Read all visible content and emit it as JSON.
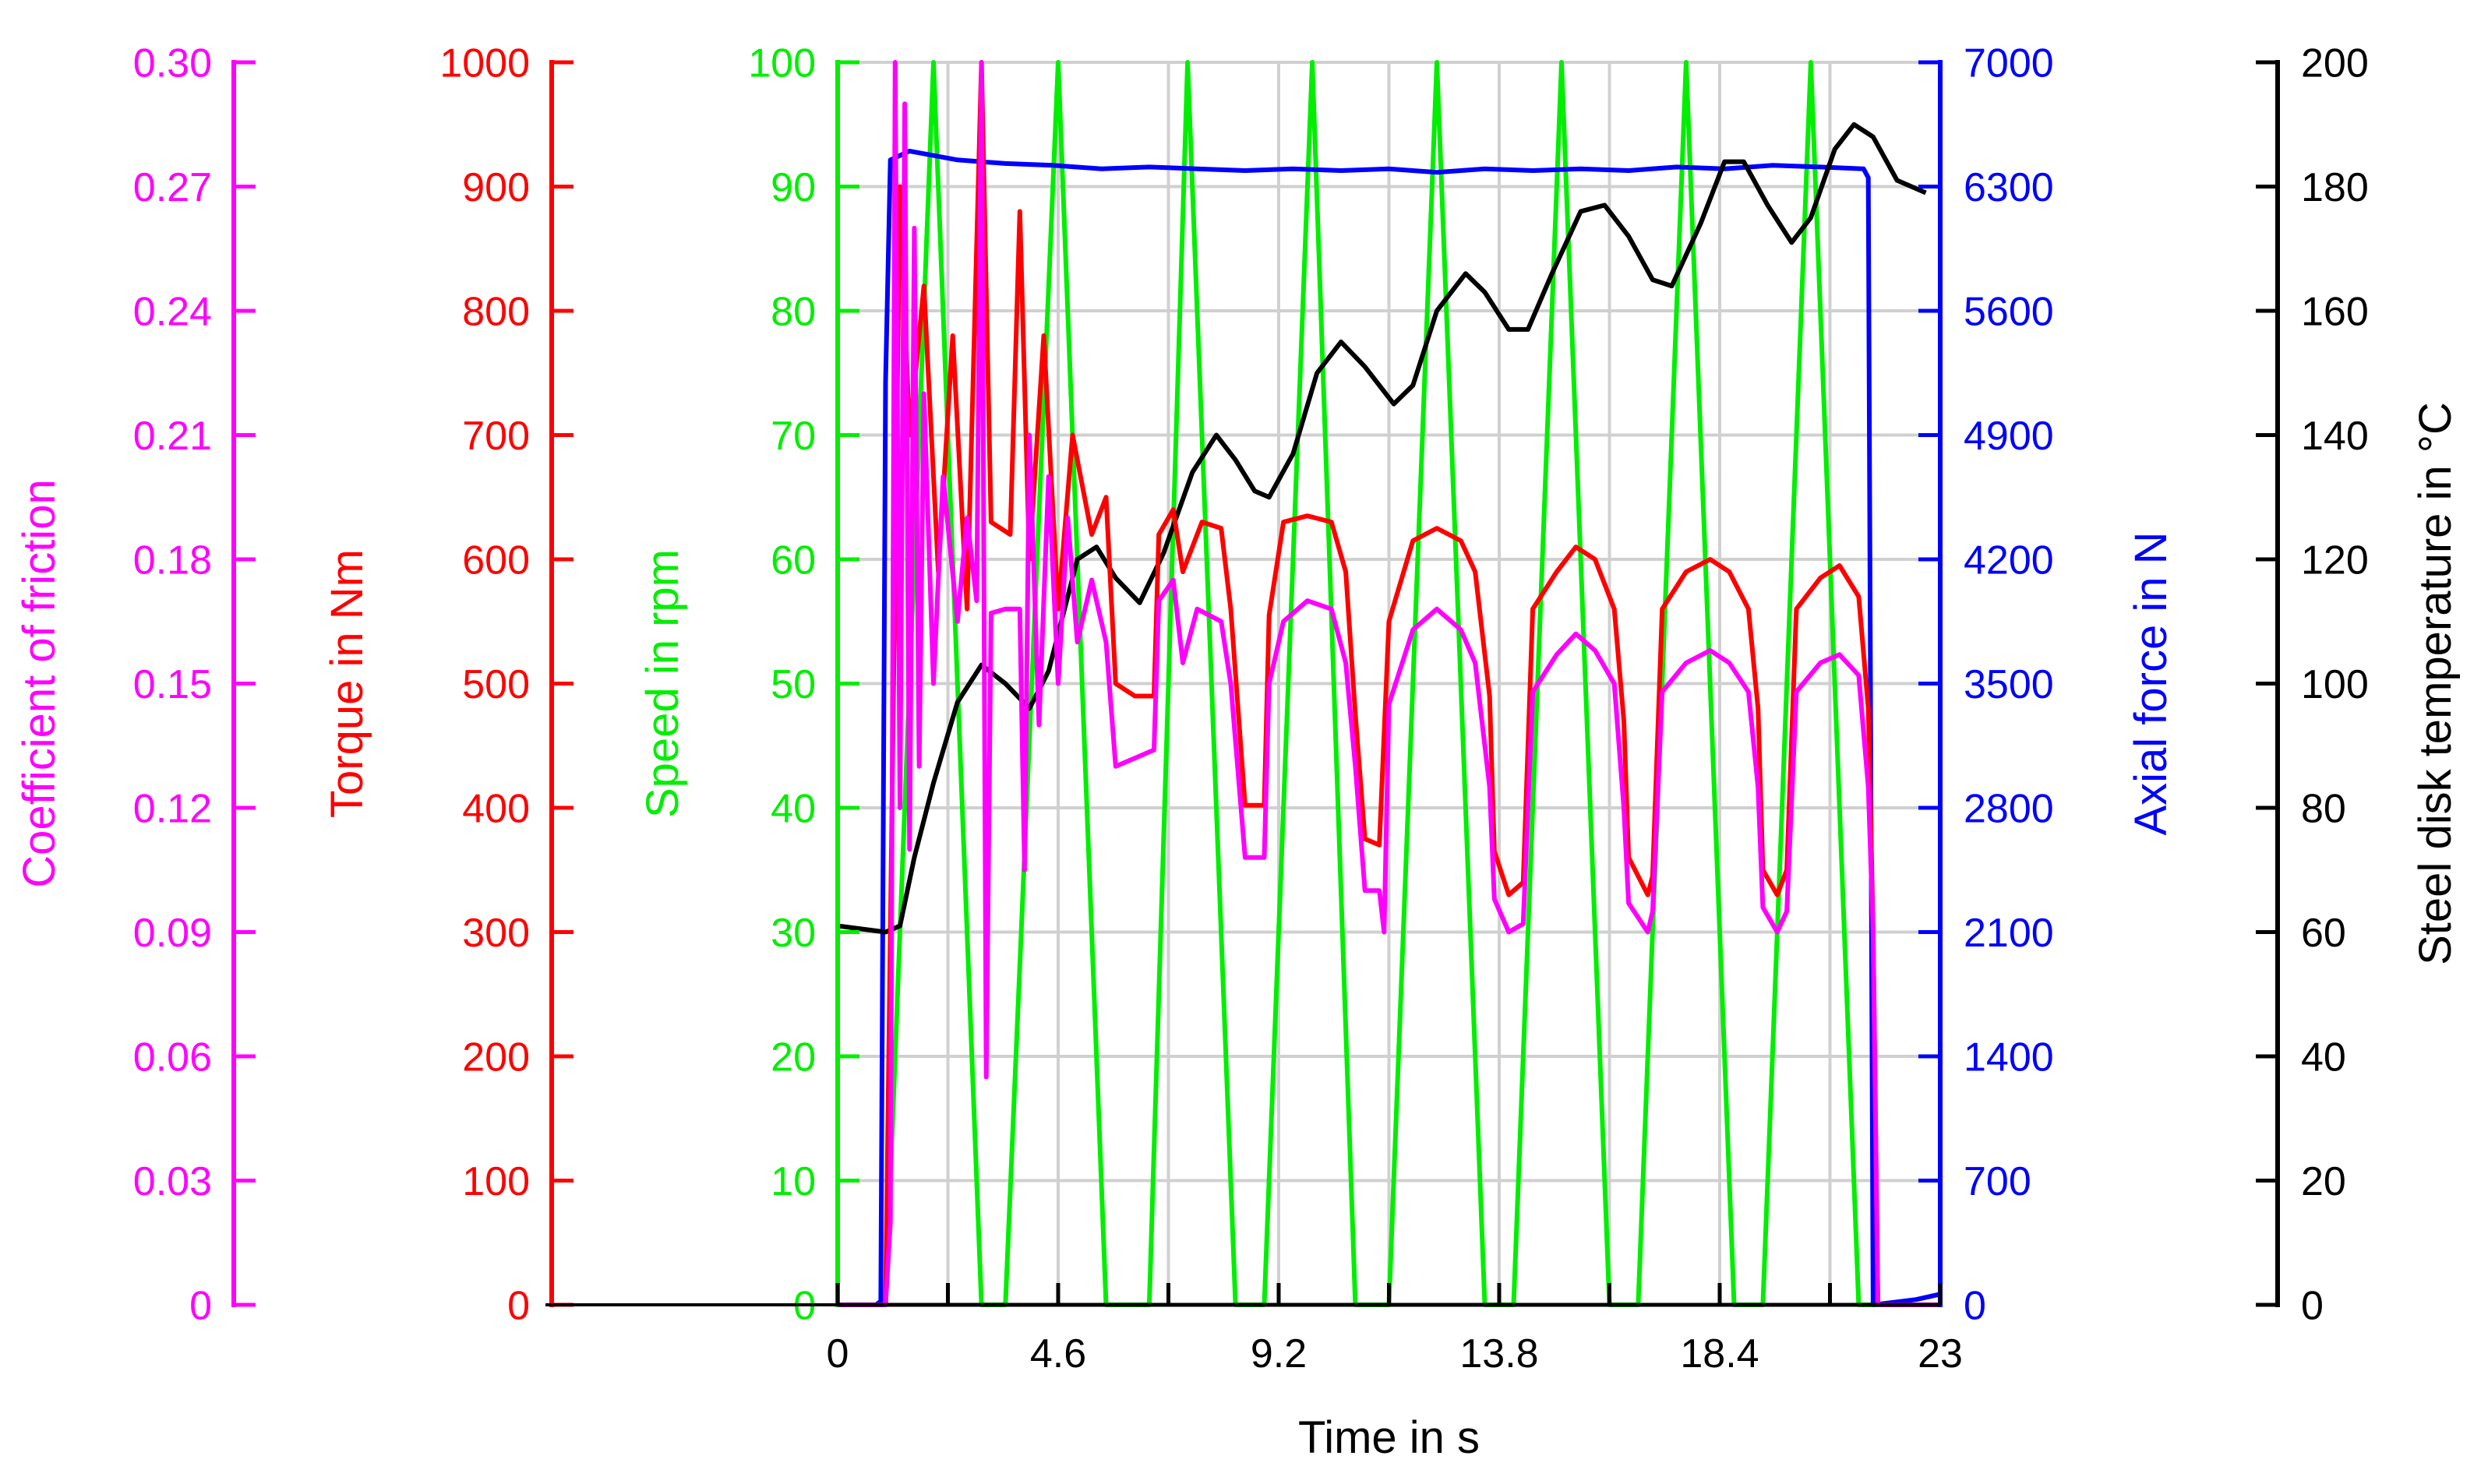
{
  "chart_data": {
    "type": "line",
    "x_axis": {
      "label": "Time in s",
      "min": 0,
      "max": 23,
      "ticks": [
        "0",
        "4.6",
        "9.2",
        "13.8",
        "18.4",
        "23"
      ],
      "minor_ticks": [
        2.3,
        6.9,
        11.5,
        16.1,
        20.7
      ]
    },
    "axes": [
      {
        "id": "friction",
        "label": "Coefficient of friction",
        "color": "#ff00ff",
        "min": 0,
        "max": 0.3,
        "ticks": [
          "0",
          "0.03",
          "0.06",
          "0.09",
          "0.12",
          "0.15",
          "0.18",
          "0.21",
          "0.24",
          "0.27",
          "0.30"
        ]
      },
      {
        "id": "torque",
        "label": "Torque in Nm",
        "color": "#ff0000",
        "min": 0,
        "max": 1000,
        "ticks": [
          "0",
          "100",
          "200",
          "300",
          "400",
          "500",
          "600",
          "700",
          "800",
          "900",
          "1000"
        ]
      },
      {
        "id": "speed",
        "label": "Speed in rpm",
        "color": "#00ee00",
        "min": 0,
        "max": 100,
        "ticks": [
          "0",
          "10",
          "20",
          "30",
          "40",
          "50",
          "60",
          "70",
          "80",
          "90",
          "100"
        ]
      },
      {
        "id": "axial",
        "label": "Axial force in N",
        "color": "#0000ff",
        "min": 0,
        "max": 7000,
        "ticks": [
          "0",
          "700",
          "1400",
          "2100",
          "2800",
          "3500",
          "4200",
          "4900",
          "5600",
          "6300",
          "7000"
        ]
      },
      {
        "id": "temp",
        "label": "Steel disk temperature in °C",
        "color": "#000000",
        "min": 0,
        "max": 200,
        "ticks": [
          "0",
          "20",
          "40",
          "60",
          "80",
          "100",
          "120",
          "140",
          "160",
          "180",
          "200"
        ]
      }
    ],
    "series": [
      {
        "name": "Speed",
        "axis": "speed",
        "color": "#00ee00",
        "points": [
          [
            0,
            0
          ],
          [
            1.0,
            0
          ],
          [
            2.0,
            100
          ],
          [
            3.0,
            0
          ],
          [
            3.5,
            0
          ],
          [
            4.6,
            100
          ],
          [
            5.6,
            0
          ],
          [
            6.5,
            0
          ],
          [
            7.3,
            100
          ],
          [
            8.3,
            0
          ],
          [
            8.9,
            0
          ],
          [
            9.9,
            100
          ],
          [
            10.8,
            0
          ],
          [
            11.5,
            0
          ],
          [
            12.5,
            100
          ],
          [
            13.5,
            0
          ],
          [
            14.1,
            0
          ],
          [
            15.1,
            100
          ],
          [
            16.1,
            0
          ],
          [
            16.7,
            0
          ],
          [
            17.7,
            100
          ],
          [
            18.7,
            0
          ],
          [
            19.3,
            0
          ],
          [
            20.3,
            100
          ],
          [
            21.3,
            0
          ],
          [
            23,
            0
          ]
        ]
      },
      {
        "name": "Axial force",
        "axis": "axial",
        "color": "#0000ff",
        "points": [
          [
            0,
            0
          ],
          [
            0.8,
            0
          ],
          [
            0.9,
            20
          ],
          [
            1.0,
            5200
          ],
          [
            1.1,
            6450
          ],
          [
            1.5,
            6500
          ],
          [
            2.5,
            6450
          ],
          [
            3.5,
            6430
          ],
          [
            4.5,
            6420
          ],
          [
            5.5,
            6400
          ],
          [
            6.5,
            6410
          ],
          [
            7.5,
            6400
          ],
          [
            8.5,
            6390
          ],
          [
            9.5,
            6400
          ],
          [
            10.5,
            6390
          ],
          [
            11.5,
            6400
          ],
          [
            12.5,
            6380
          ],
          [
            13.5,
            6400
          ],
          [
            14.5,
            6390
          ],
          [
            15.5,
            6400
          ],
          [
            16.5,
            6390
          ],
          [
            17.5,
            6410
          ],
          [
            18.5,
            6400
          ],
          [
            19.5,
            6420
          ],
          [
            20.5,
            6410
          ],
          [
            21.4,
            6400
          ],
          [
            21.5,
            6350
          ],
          [
            21.6,
            0
          ],
          [
            22.5,
            30
          ],
          [
            23,
            60
          ]
        ]
      },
      {
        "name": "Steel disk temperature",
        "axis": "temp",
        "color": "#000000",
        "points": [
          [
            0,
            61
          ],
          [
            1.0,
            60
          ],
          [
            1.3,
            61
          ],
          [
            1.6,
            72
          ],
          [
            2.0,
            84
          ],
          [
            2.5,
            97
          ],
          [
            3.0,
            103
          ],
          [
            3.5,
            100
          ],
          [
            4.0,
            96
          ],
          [
            4.4,
            102
          ],
          [
            5.0,
            120
          ],
          [
            5.4,
            122
          ],
          [
            5.8,
            117
          ],
          [
            6.3,
            113
          ],
          [
            6.8,
            121
          ],
          [
            7.4,
            134
          ],
          [
            7.9,
            140
          ],
          [
            8.3,
            136
          ],
          [
            8.7,
            131
          ],
          [
            9.0,
            130
          ],
          [
            9.5,
            137
          ],
          [
            10.0,
            150
          ],
          [
            10.5,
            155
          ],
          [
            11.0,
            151
          ],
          [
            11.6,
            145
          ],
          [
            12.0,
            148
          ],
          [
            12.5,
            160
          ],
          [
            13.1,
            166
          ],
          [
            13.5,
            163
          ],
          [
            14.0,
            157
          ],
          [
            14.4,
            157
          ],
          [
            14.9,
            166
          ],
          [
            15.5,
            176
          ],
          [
            16.0,
            177
          ],
          [
            16.5,
            172
          ],
          [
            17.0,
            165
          ],
          [
            17.4,
            164
          ],
          [
            18.0,
            174
          ],
          [
            18.5,
            184
          ],
          [
            18.9,
            184
          ],
          [
            19.4,
            177
          ],
          [
            19.9,
            171
          ],
          [
            20.3,
            175
          ],
          [
            20.8,
            186
          ],
          [
            21.2,
            190
          ],
          [
            21.6,
            188
          ],
          [
            22.1,
            181
          ],
          [
            22.7,
            179
          ]
        ]
      },
      {
        "name": "Torque",
        "axis": "torque",
        "color": "#ff0000",
        "points": [
          [
            0,
            0
          ],
          [
            1.0,
            0
          ],
          [
            1.3,
            900
          ],
          [
            1.5,
            700
          ],
          [
            1.8,
            820
          ],
          [
            2.1,
            590
          ],
          [
            2.4,
            780
          ],
          [
            2.7,
            560
          ],
          [
            3.0,
            1000
          ],
          [
            3.2,
            630
          ],
          [
            3.6,
            620
          ],
          [
            3.8,
            880
          ],
          [
            4.0,
            600
          ],
          [
            4.3,
            780
          ],
          [
            4.6,
            560
          ],
          [
            4.9,
            700
          ],
          [
            5.3,
            620
          ],
          [
            5.6,
            650
          ],
          [
            5.8,
            500
          ],
          [
            6.2,
            490
          ],
          [
            6.6,
            490
          ],
          [
            6.7,
            620
          ],
          [
            7.0,
            640
          ],
          [
            7.2,
            590
          ],
          [
            7.6,
            630
          ],
          [
            8.0,
            625
          ],
          [
            8.2,
            560
          ],
          [
            8.5,
            402
          ],
          [
            8.9,
            402
          ],
          [
            9.0,
            555
          ],
          [
            9.3,
            630
          ],
          [
            9.8,
            635
          ],
          [
            10.3,
            630
          ],
          [
            10.6,
            590
          ],
          [
            10.8,
            475
          ],
          [
            11.0,
            375
          ],
          [
            11.3,
            370
          ],
          [
            11.5,
            550
          ],
          [
            12.0,
            615
          ],
          [
            12.5,
            625
          ],
          [
            13.0,
            615
          ],
          [
            13.3,
            590
          ],
          [
            13.6,
            490
          ],
          [
            13.7,
            365
          ],
          [
            14.0,
            330
          ],
          [
            14.3,
            340
          ],
          [
            14.5,
            560
          ],
          [
            15.0,
            590
          ],
          [
            15.4,
            610
          ],
          [
            15.8,
            600
          ],
          [
            16.2,
            560
          ],
          [
            16.4,
            470
          ],
          [
            16.5,
            360
          ],
          [
            16.9,
            330
          ],
          [
            17.0,
            345
          ],
          [
            17.2,
            560
          ],
          [
            17.7,
            590
          ],
          [
            18.2,
            600
          ],
          [
            18.6,
            590
          ],
          [
            19.0,
            560
          ],
          [
            19.2,
            480
          ],
          [
            19.3,
            350
          ],
          [
            19.6,
            330
          ],
          [
            19.8,
            350
          ],
          [
            20.0,
            560
          ],
          [
            20.5,
            585
          ],
          [
            20.9,
            595
          ],
          [
            21.3,
            570
          ],
          [
            21.5,
            480
          ],
          [
            21.6,
            300
          ],
          [
            21.7,
            0
          ],
          [
            23,
            0
          ]
        ]
      },
      {
        "name": "Coefficient of friction",
        "axis": "friction",
        "color": "#ff00ff",
        "points": [
          [
            0,
            0
          ],
          [
            1.0,
            0
          ],
          [
            1.1,
            0.02
          ],
          [
            1.2,
            0.3
          ],
          [
            1.3,
            0.12
          ],
          [
            1.4,
            0.29
          ],
          [
            1.5,
            0.11
          ],
          [
            1.6,
            0.26
          ],
          [
            1.7,
            0.13
          ],
          [
            1.8,
            0.22
          ],
          [
            2.0,
            0.15
          ],
          [
            2.2,
            0.2
          ],
          [
            2.5,
            0.165
          ],
          [
            2.7,
            0.19
          ],
          [
            2.9,
            0.17
          ],
          [
            3.0,
            0.3
          ],
          [
            3.1,
            0.055
          ],
          [
            3.2,
            0.167
          ],
          [
            3.5,
            0.168
          ],
          [
            3.8,
            0.168
          ],
          [
            3.9,
            0.105
          ],
          [
            4.0,
            0.21
          ],
          [
            4.2,
            0.14
          ],
          [
            4.4,
            0.2
          ],
          [
            4.6,
            0.15
          ],
          [
            4.8,
            0.19
          ],
          [
            5.0,
            0.16
          ],
          [
            5.3,
            0.175
          ],
          [
            5.6,
            0.16
          ],
          [
            5.8,
            0.13
          ],
          [
            6.2,
            0.132
          ],
          [
            6.6,
            0.134
          ],
          [
            6.7,
            0.17
          ],
          [
            7.0,
            0.175
          ],
          [
            7.2,
            0.155
          ],
          [
            7.5,
            0.168
          ],
          [
            8.0,
            0.165
          ],
          [
            8.2,
            0.15
          ],
          [
            8.5,
            0.108
          ],
          [
            8.9,
            0.108
          ],
          [
            9.0,
            0.15
          ],
          [
            9.3,
            0.165
          ],
          [
            9.8,
            0.17
          ],
          [
            10.3,
            0.168
          ],
          [
            10.6,
            0.155
          ],
          [
            10.8,
            0.13
          ],
          [
            11.0,
            0.1
          ],
          [
            11.3,
            0.1
          ],
          [
            11.4,
            0.09
          ],
          [
            11.5,
            0.145
          ],
          [
            12.0,
            0.163
          ],
          [
            12.5,
            0.168
          ],
          [
            13.0,
            0.163
          ],
          [
            13.3,
            0.155
          ],
          [
            13.6,
            0.125
          ],
          [
            13.7,
            0.098
          ],
          [
            14.0,
            0.09
          ],
          [
            14.3,
            0.092
          ],
          [
            14.5,
            0.148
          ],
          [
            15.0,
            0.157
          ],
          [
            15.4,
            0.162
          ],
          [
            15.8,
            0.158
          ],
          [
            16.2,
            0.15
          ],
          [
            16.4,
            0.12
          ],
          [
            16.5,
            0.097
          ],
          [
            16.9,
            0.09
          ],
          [
            17.0,
            0.095
          ],
          [
            17.2,
            0.148
          ],
          [
            17.7,
            0.155
          ],
          [
            18.2,
            0.158
          ],
          [
            18.6,
            0.155
          ],
          [
            19.0,
            0.148
          ],
          [
            19.2,
            0.125
          ],
          [
            19.3,
            0.096
          ],
          [
            19.6,
            0.09
          ],
          [
            19.8,
            0.095
          ],
          [
            20.0,
            0.148
          ],
          [
            20.5,
            0.155
          ],
          [
            20.9,
            0.157
          ],
          [
            21.3,
            0.152
          ],
          [
            21.5,
            0.125
          ],
          [
            21.6,
            0.09
          ],
          [
            21.7,
            0
          ],
          [
            23,
            0
          ]
        ]
      }
    ]
  }
}
